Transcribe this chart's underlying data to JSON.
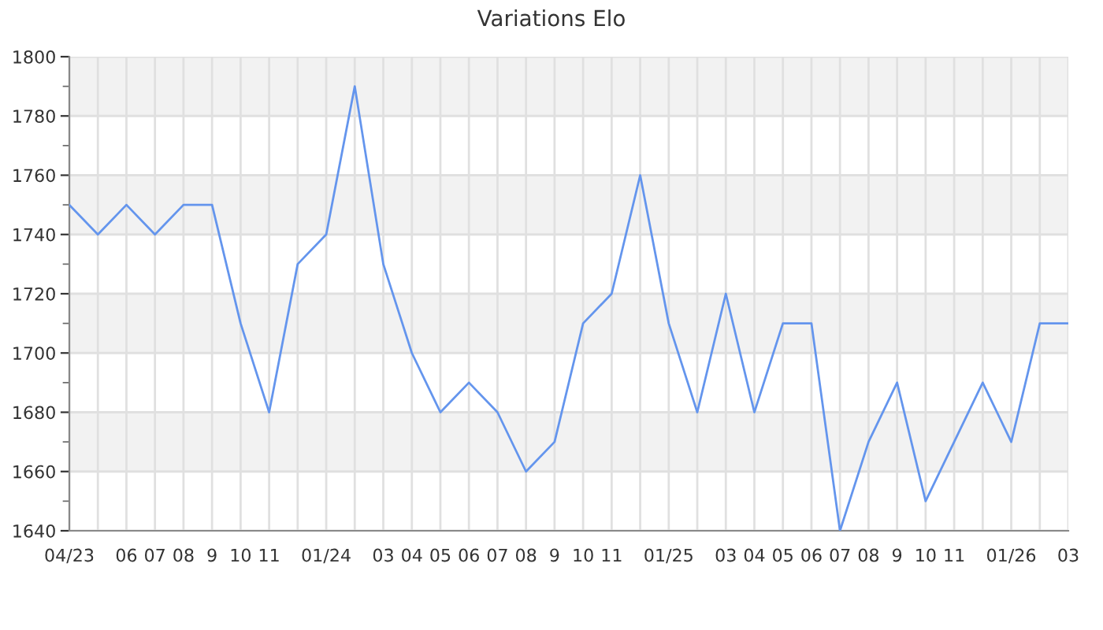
{
  "chart_data": {
    "type": "line",
    "title": "Variations Elo",
    "categories": [
      "04/23",
      null,
      "06",
      "07",
      "08",
      "9",
      "10",
      "11",
      null,
      "01/24",
      null,
      "03",
      "04",
      "05",
      "06",
      "07",
      "08",
      "9",
      "10",
      "11",
      null,
      "01/25",
      null,
      "03",
      "04",
      "05",
      "06",
      "07",
      "08",
      "9",
      "10",
      "11",
      null,
      "01/26",
      null,
      "03"
    ],
    "series": [
      {
        "color": "#6495ed",
        "values": [
          1750,
          1740,
          1750,
          1740,
          1750,
          1750,
          1710,
          1680,
          1730,
          1740,
          1790,
          1730,
          1700,
          1680,
          1690,
          1680,
          1660,
          1670,
          1710,
          1720,
          1760,
          1710,
          1680,
          1720,
          1680,
          1710,
          1710,
          1640,
          1670,
          1690,
          1650,
          1670,
          1690,
          1670,
          1710,
          1710
        ]
      }
    ],
    "ylim": [
      1640,
      1800
    ],
    "yticks": [
      1640,
      1660,
      1680,
      1700,
      1720,
      1740,
      1760,
      1780,
      1800
    ],
    "bands": [
      {
        "axis": "y",
        "from": 1660,
        "to": 1680,
        "color": "#f2f2f2"
      },
      {
        "axis": "y",
        "from": 1700,
        "to": 1720,
        "color": "#f2f2f2"
      },
      {
        "axis": "y",
        "from": 1740,
        "to": 1760,
        "color": "#f2f2f2"
      },
      {
        "axis": "y",
        "from": 1780,
        "to": 1800,
        "color": "#f2f2f2"
      }
    ],
    "grid": true,
    "marker": "none",
    "line_style": "solid"
  }
}
